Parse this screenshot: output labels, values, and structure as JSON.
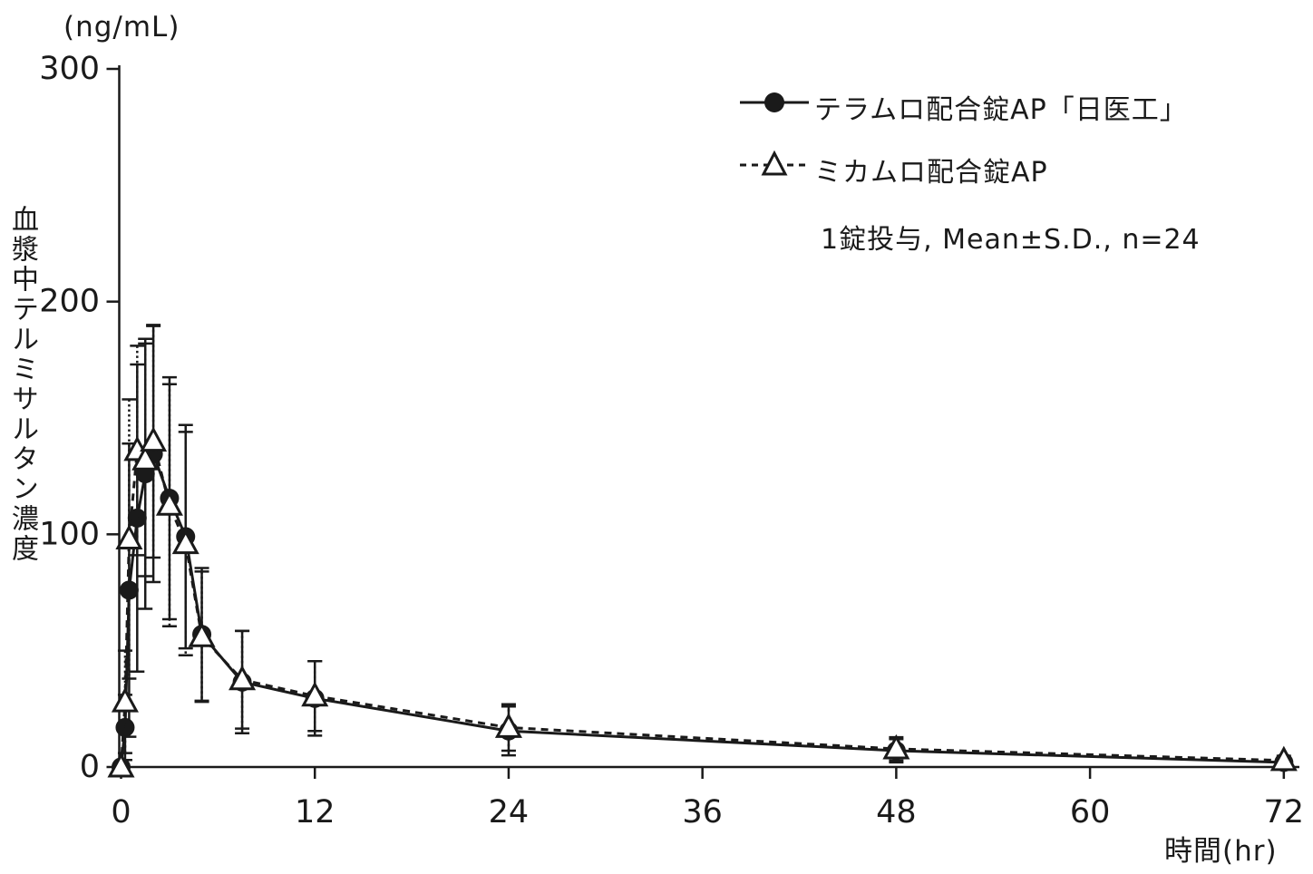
{
  "ink_color": "#1a1a1a",
  "background_color": "#ffffff",
  "y_axis": {
    "unit_label": "(ng/mL)",
    "title": "血漿中テルミサルタン濃度",
    "tick_labels": [
      "0",
      "100",
      "200",
      "300"
    ],
    "ticks": [
      0,
      100,
      200,
      300
    ]
  },
  "x_axis": {
    "label": "時間(hr)",
    "tick_labels": [
      "0",
      "12",
      "24",
      "36",
      "48",
      "60",
      "72"
    ],
    "ticks": [
      0,
      12,
      24,
      36,
      48,
      60,
      72
    ]
  },
  "annotation": "1錠投与, Mean±S.D., n=24",
  "chart_data": {
    "type": "line",
    "title": "",
    "xlabel": "時間(hr)",
    "ylabel": "血漿中テルミサルタン濃度",
    "y_unit": "ng/mL",
    "xlim": [
      0,
      72
    ],
    "ylim": [
      0,
      300
    ],
    "grid": false,
    "legend_position": "top-right",
    "error_bars": "Mean±S.D.",
    "n": 24,
    "x": [
      0,
      0.25,
      0.5,
      1,
      1.5,
      2,
      3,
      4,
      5,
      7.5,
      12,
      24,
      48,
      72
    ],
    "series": [
      {
        "name": "テラムロ配合錠AP「日医工」",
        "marker": "filled-circle",
        "line": "solid",
        "mean": [
          0,
          17,
          76,
          107,
          126,
          134.5,
          115.5,
          99,
          57,
          36.5,
          29.5,
          15.5,
          7,
          2
        ],
        "sd": [
          0,
          14,
          63,
          66,
          58,
          55,
          52,
          48,
          28.5,
          22,
          16,
          10.5,
          5,
          2
        ]
      },
      {
        "name": "ミカムロ配合錠AP",
        "marker": "open-triangle",
        "line": "dashed",
        "mean": [
          0,
          28,
          98,
          136,
          132,
          140,
          112.5,
          96,
          56,
          37.5,
          30.5,
          17,
          7.8,
          2.8
        ],
        "sd": [
          0,
          22,
          60,
          45,
          50,
          50,
          52,
          48,
          28,
          21,
          15,
          10,
          5,
          2
        ]
      }
    ]
  }
}
